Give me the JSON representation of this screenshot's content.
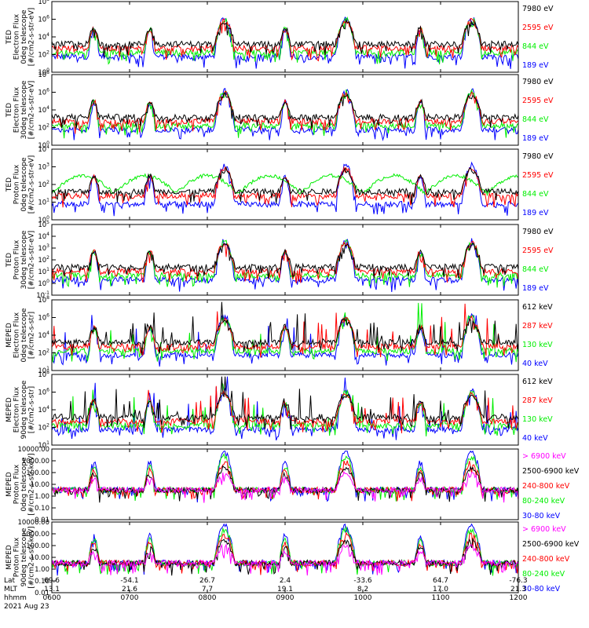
{
  "date_label": "2021 Aug 23",
  "axis_rows": [
    {
      "label": "Lat",
      "values": [
        "69.6",
        "-54.1",
        "26.7",
        "2.4",
        "-33.6",
        "64.7",
        "-76.3"
      ]
    },
    {
      "label": "MLT",
      "values": [
        "13.1",
        "21.6",
        "7.7",
        "19.1",
        "8.2",
        "17.0",
        "21.3"
      ]
    },
    {
      "label": "hhmm",
      "values": [
        "0600",
        "0700",
        "0800",
        "0900",
        "1000",
        "1100",
        "1200"
      ]
    }
  ],
  "colors": {
    "black": "#000000",
    "red": "#ff0000",
    "green": "#00ee00",
    "blue": "#0000ff",
    "magenta": "#ff00ff"
  },
  "chart_data": [
    {
      "type": "line",
      "ylabel": [
        "TED",
        "Electron Flux",
        "0deg telescope",
        "[#/cm2-s-str-eV]"
      ],
      "ytick_exps": [
        0,
        2,
        4,
        6,
        8
      ],
      "yticks_style": "exp",
      "legend": [
        {
          "name": "7980 eV",
          "color": "#000000"
        },
        {
          "name": "2595 eV",
          "color": "#ff0000"
        },
        {
          "name": "844 eV",
          "color": "#00ee00"
        },
        {
          "name": "189 eV",
          "color": "#0000ff"
        }
      ]
    },
    {
      "type": "line",
      "ylabel": [
        "TED",
        "Electron Flux",
        "30deg telescope",
        "[#/cm2-s-str-eV]"
      ],
      "ytick_exps": [
        0,
        2,
        4,
        6,
        8
      ],
      "yticks_style": "exp",
      "legend": [
        {
          "name": "7980 eV",
          "color": "#000000"
        },
        {
          "name": "2595 eV",
          "color": "#ff0000"
        },
        {
          "name": "844 eV",
          "color": "#00ee00"
        },
        {
          "name": "189 eV",
          "color": "#0000ff"
        }
      ]
    },
    {
      "type": "line",
      "ylabel": [
        "TED",
        "Proton Flux",
        "0deg telescope",
        "[#/cm2-s-str-eV]"
      ],
      "ytick_exps": [
        0,
        1,
        2,
        3,
        4
      ],
      "yticks_style": "exp",
      "legend": [
        {
          "name": "7980 eV",
          "color": "#000000"
        },
        {
          "name": "2595 eV",
          "color": "#ff0000"
        },
        {
          "name": "844 eV",
          "color": "#00ee00"
        },
        {
          "name": "189 eV",
          "color": "#0000ff"
        }
      ]
    },
    {
      "type": "line",
      "ylabel": [
        "TED",
        "Proton Flux",
        "30deg telescope",
        "[#/cm2-s-str-eV]"
      ],
      "ytick_exps": [
        -1,
        0,
        1,
        2,
        3,
        4,
        5
      ],
      "yticks_style": "exp",
      "legend": [
        {
          "name": "7980 eV",
          "color": "#000000"
        },
        {
          "name": "2595 eV",
          "color": "#ff0000"
        },
        {
          "name": "844 eV",
          "color": "#00ee00"
        },
        {
          "name": "189 eV",
          "color": "#0000ff"
        }
      ]
    },
    {
      "type": "line",
      "ylabel": [
        "MEPED",
        "Electron Flux",
        "0deg telescope",
        "[#/cm2-s-str]"
      ],
      "ytick_exps": [
        1,
        2,
        4,
        6,
        8
      ],
      "yticks_style": "exp",
      "legend": [
        {
          "name": "612 keV",
          "color": "#000000"
        },
        {
          "name": "287 keV",
          "color": "#ff0000"
        },
        {
          "name": "130 keV",
          "color": "#00ee00"
        },
        {
          "name": "40 keV",
          "color": "#0000ff"
        }
      ]
    },
    {
      "type": "line",
      "ylabel": [
        "MEPED",
        "Electron Flux",
        "90deg telescope",
        "[#/cm2-s-str]"
      ],
      "ytick_exps": [
        1,
        2,
        4,
        6,
        8
      ],
      "yticks_style": "exp",
      "legend": [
        {
          "name": "612 keV",
          "color": "#000000"
        },
        {
          "name": "287 keV",
          "color": "#ff0000"
        },
        {
          "name": "130 keV",
          "color": "#00ee00"
        },
        {
          "name": "40 keV",
          "color": "#0000ff"
        }
      ]
    },
    {
      "type": "line",
      "ylabel": [
        "MEPED",
        "Proton Flux",
        "0deg telescope",
        "[#/cm2-s-str-keV]"
      ],
      "ytick_labels": [
        "0.01",
        "0.10",
        "1.00",
        "10.00",
        "100.00",
        "1000.00",
        "10000.00"
      ],
      "yticks_style": "decimal",
      "legend": [
        {
          "name": "> 6900 keV",
          "color": "#ff00ff"
        },
        {
          "name": "2500-6900 keV",
          "color": "#000000"
        },
        {
          "name": "240-800 keV",
          "color": "#ff0000"
        },
        {
          "name": "80-240 keV",
          "color": "#00ee00"
        },
        {
          "name": "30-80 keV",
          "color": "#0000ff"
        }
      ]
    },
    {
      "type": "line",
      "ylabel": [
        "MEPED",
        "Proton Flux",
        "90deg telescope",
        "[#/cm2-s-str-keV]"
      ],
      "ytick_labels": [
        "0.01",
        "0.10",
        "1.00",
        "10.00",
        "100.00",
        "1000.00",
        "10000.00"
      ],
      "yticks_style": "decimal",
      "legend": [
        {
          "name": "> 6900 keV",
          "color": "#ff00ff"
        },
        {
          "name": "2500-6900 keV",
          "color": "#000000"
        },
        {
          "name": "240-800 keV",
          "color": "#ff0000"
        },
        {
          "name": "80-240 keV",
          "color": "#00ee00"
        },
        {
          "name": "30-80 keV",
          "color": "#0000ff"
        }
      ]
    }
  ]
}
